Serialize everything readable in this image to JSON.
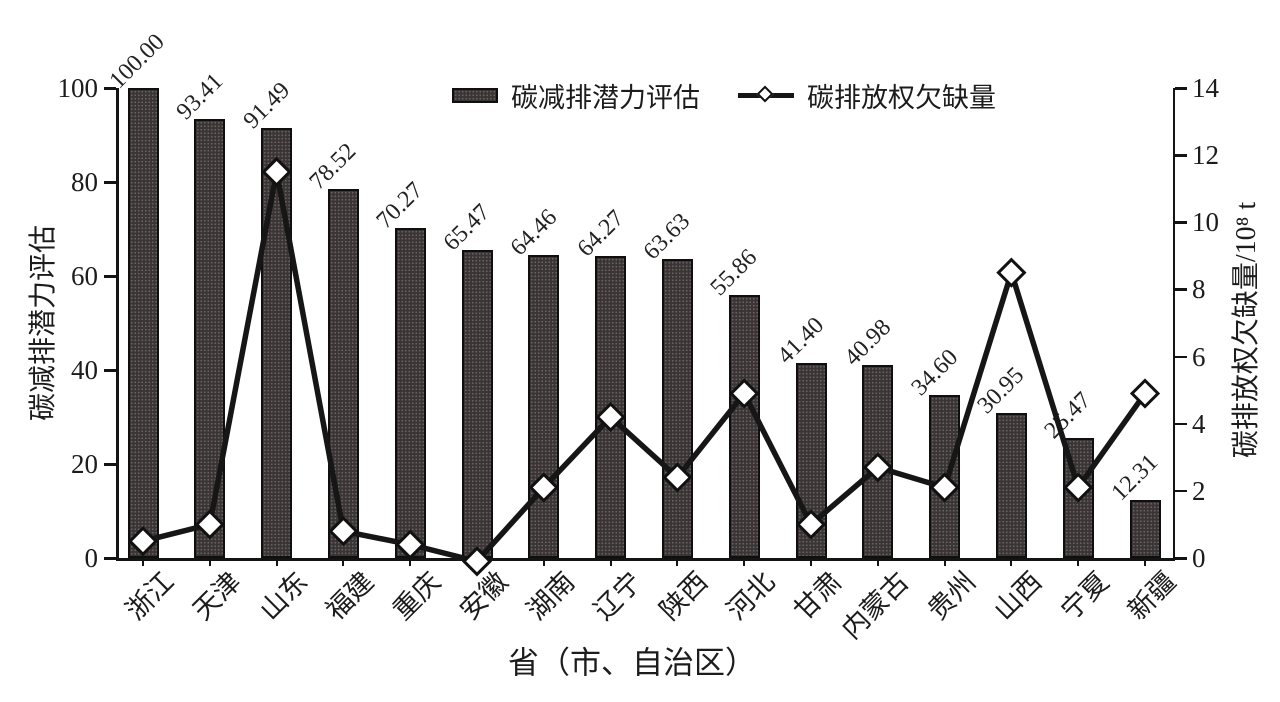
{
  "chart_data": {
    "type": "bar",
    "categories": [
      "浙江",
      "天津",
      "山东",
      "福建",
      "重庆",
      "安徽",
      "湖南",
      "辽宁",
      "陕西",
      "河北",
      "甘肃",
      "内蒙古",
      "贵州",
      "山西",
      "宁夏",
      "新疆"
    ],
    "series": [
      {
        "name": "碳减排潜力评估",
        "type": "bar",
        "axis": "left",
        "values": [
          100.0,
          93.41,
          91.49,
          78.52,
          70.27,
          65.47,
          64.46,
          64.27,
          63.63,
          55.86,
          41.4,
          40.98,
          34.6,
          30.95,
          25.47,
          12.31
        ],
        "labels": [
          "100.00",
          "93.41",
          "91.49",
          "78.52",
          "70.27",
          "65.47",
          "64.46",
          "64.27",
          "63.63",
          "55.86",
          "41.40",
          "40.98",
          "34.60",
          "30.95",
          "25.47",
          "12.31"
        ]
      },
      {
        "name": "碳排放权欠缺量",
        "type": "line",
        "axis": "right",
        "values": [
          0.5,
          1.0,
          11.5,
          0.8,
          0.4,
          -0.1,
          2.1,
          4.2,
          2.4,
          4.9,
          1.0,
          2.7,
          2.1,
          8.5,
          2.1,
          4.9
        ]
      }
    ],
    "left_axis": {
      "label": "碳减排潜力评估",
      "ticks": [
        0,
        20,
        40,
        60,
        80,
        100
      ],
      "range": [
        0,
        100
      ]
    },
    "right_axis": {
      "label": "碳排放权欠缺量/10⁸ t",
      "ticks": [
        0,
        2,
        4,
        6,
        8,
        10,
        12,
        14
      ],
      "range": [
        0,
        14
      ]
    },
    "xlabel": "省（市、自治区）",
    "legend_position": "top",
    "grid": "off",
    "colors": {
      "bar_fill": "#3a3534",
      "bar_border": "#0f0f0f",
      "line": "#161616",
      "marker_fill": "#ffffff",
      "marker_border": "#111111",
      "text": "#1c1c1c"
    }
  }
}
